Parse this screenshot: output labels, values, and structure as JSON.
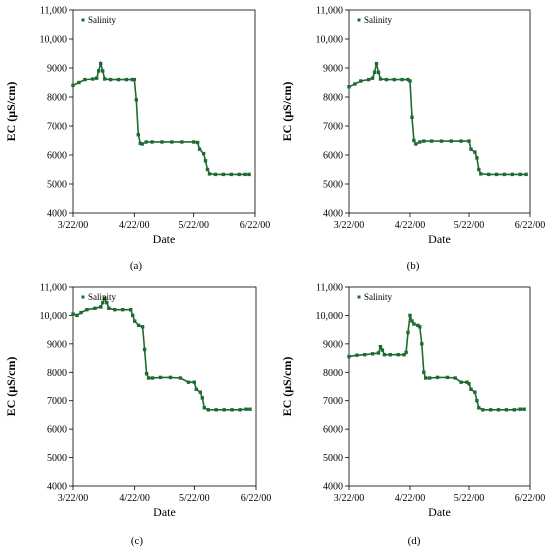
{
  "chart_data": [
    {
      "id": "a",
      "type": "line",
      "caption": "(a)",
      "xlabel": "Date",
      "ylabel": "EC (μS/cm)",
      "ylim": [
        4000,
        11000
      ],
      "yticks": [
        4000,
        5000,
        6000,
        7000,
        8000,
        9000,
        10000,
        11000
      ],
      "ytick_labels": [
        "4000",
        "5000",
        "6000",
        "7000",
        "8000",
        "9000",
        "10,000",
        "11,000"
      ],
      "xlim": [
        "2000-03-22",
        "2000-06-22"
      ],
      "xticks": [
        "2000-03-22",
        "2000-04-22",
        "2000-05-22",
        "2000-06-22"
      ],
      "xtick_labels": [
        "3/22/00",
        "4/22/00",
        "5/22/00",
        "6/22/00"
      ],
      "legend": {
        "position": "top-left",
        "entries": [
          "Salinity"
        ]
      },
      "series": [
        {
          "name": "Salinity",
          "color": "#1e6b32",
          "points": [
            [
              "2000-03-22",
              8400
            ],
            [
              "2000-03-25",
              8500
            ],
            [
              "2000-03-28",
              8600
            ],
            [
              "2000-04-01",
              8620
            ],
            [
              "2000-04-03",
              8650
            ],
            [
              "2000-04-04",
              8900
            ],
            [
              "2000-04-05",
              9150
            ],
            [
              "2000-04-06",
              8900
            ],
            [
              "2000-04-07",
              8620
            ],
            [
              "2000-04-10",
              8600
            ],
            [
              "2000-04-14",
              8600
            ],
            [
              "2000-04-18",
              8600
            ],
            [
              "2000-04-21",
              8600
            ],
            [
              "2000-04-22",
              8600
            ],
            [
              "2000-04-23",
              7900
            ],
            [
              "2000-04-24",
              6700
            ],
            [
              "2000-04-25",
              6400
            ],
            [
              "2000-04-26",
              6380
            ],
            [
              "2000-04-28",
              6450
            ],
            [
              "2000-05-01",
              6450
            ],
            [
              "2000-05-06",
              6450
            ],
            [
              "2000-05-11",
              6450
            ],
            [
              "2000-05-16",
              6450
            ],
            [
              "2000-05-22",
              6450
            ],
            [
              "2000-05-24",
              6430
            ],
            [
              "2000-05-25",
              6200
            ],
            [
              "2000-05-27",
              6050
            ],
            [
              "2000-05-28",
              5800
            ],
            [
              "2000-05-29",
              5500
            ],
            [
              "2000-05-30",
              5350
            ],
            [
              "2000-06-02",
              5330
            ],
            [
              "2000-06-06",
              5330
            ],
            [
              "2000-06-10",
              5330
            ],
            [
              "2000-06-14",
              5330
            ],
            [
              "2000-06-17",
              5330
            ],
            [
              "2000-06-19",
              5330
            ]
          ]
        }
      ]
    },
    {
      "id": "b",
      "type": "line",
      "caption": "(b)",
      "xlabel": "Date",
      "ylabel": "EC (μS/cm)",
      "ylim": [
        4000,
        11000
      ],
      "yticks": [
        4000,
        5000,
        6000,
        7000,
        8000,
        9000,
        10000,
        11000
      ],
      "ytick_labels": [
        "4000",
        "5000",
        "6000",
        "7000",
        "8000",
        "9000",
        "10,000",
        "11,000"
      ],
      "xlim": [
        "2000-03-22",
        "2000-06-22"
      ],
      "xticks": [
        "2000-03-22",
        "2000-04-22",
        "2000-05-22",
        "2000-06-22"
      ],
      "xtick_labels": [
        "3/22/00",
        "4/22/00",
        "5/22/00",
        "6/22/00"
      ],
      "legend": {
        "position": "top-left",
        "entries": [
          "Salinity"
        ]
      },
      "series": [
        {
          "name": "Salinity",
          "color": "#1e6b32",
          "points": [
            [
              "2000-03-22",
              8350
            ],
            [
              "2000-03-25",
              8450
            ],
            [
              "2000-03-28",
              8550
            ],
            [
              "2000-04-01",
              8600
            ],
            [
              "2000-04-03",
              8650
            ],
            [
              "2000-04-04",
              8850
            ],
            [
              "2000-04-05",
              9150
            ],
            [
              "2000-04-06",
              8850
            ],
            [
              "2000-04-07",
              8620
            ],
            [
              "2000-04-10",
              8600
            ],
            [
              "2000-04-14",
              8600
            ],
            [
              "2000-04-18",
              8600
            ],
            [
              "2000-04-21",
              8600
            ],
            [
              "2000-04-22",
              8550
            ],
            [
              "2000-04-23",
              7300
            ],
            [
              "2000-04-24",
              6500
            ],
            [
              "2000-04-25",
              6380
            ],
            [
              "2000-04-27",
              6450
            ],
            [
              "2000-04-29",
              6480
            ],
            [
              "2000-05-03",
              6480
            ],
            [
              "2000-05-08",
              6480
            ],
            [
              "2000-05-13",
              6480
            ],
            [
              "2000-05-18",
              6480
            ],
            [
              "2000-05-22",
              6480
            ],
            [
              "2000-05-23",
              6200
            ],
            [
              "2000-05-25",
              6100
            ],
            [
              "2000-05-26",
              5900
            ],
            [
              "2000-05-27",
              5500
            ],
            [
              "2000-05-28",
              5350
            ],
            [
              "2000-06-01",
              5330
            ],
            [
              "2000-06-05",
              5330
            ],
            [
              "2000-06-09",
              5330
            ],
            [
              "2000-06-13",
              5330
            ],
            [
              "2000-06-17",
              5330
            ],
            [
              "2000-06-20",
              5330
            ]
          ]
        }
      ]
    },
    {
      "id": "c",
      "type": "line",
      "caption": "(c)",
      "xlabel": "Date",
      "ylabel": "EC (μS/cm)",
      "ylim": [
        4000,
        11000
      ],
      "yticks": [
        4000,
        5000,
        6000,
        7000,
        8000,
        9000,
        10000,
        11000
      ],
      "ytick_labels": [
        "4000",
        "5000",
        "6000",
        "7000",
        "8000",
        "9000",
        "10,000",
        "11,000"
      ],
      "xlim": [
        "2000-03-22",
        "2000-06-22"
      ],
      "xticks": [
        "2000-03-22",
        "2000-04-22",
        "2000-05-22",
        "2000-06-22"
      ],
      "xtick_labels": [
        "3/22/00",
        "4/22/00",
        "5/22/00",
        "6/22/00"
      ],
      "legend": {
        "position": "top-left",
        "entries": [
          "Salinity"
        ]
      },
      "series": [
        {
          "name": "Salinity",
          "color": "#1e6b32",
          "points": [
            [
              "2000-03-22",
              10050
            ],
            [
              "2000-03-24",
              10000
            ],
            [
              "2000-03-26",
              10100
            ],
            [
              "2000-03-29",
              10200
            ],
            [
              "2000-04-02",
              10250
            ],
            [
              "2000-04-05",
              10300
            ],
            [
              "2000-04-06",
              10450
            ],
            [
              "2000-04-07",
              10600
            ],
            [
              "2000-04-08",
              10450
            ],
            [
              "2000-04-09",
              10250
            ],
            [
              "2000-04-12",
              10200
            ],
            [
              "2000-04-16",
              10200
            ],
            [
              "2000-04-20",
              10200
            ],
            [
              "2000-04-21",
              10000
            ],
            [
              "2000-04-22",
              9800
            ],
            [
              "2000-04-24",
              9650
            ],
            [
              "2000-04-26",
              9600
            ],
            [
              "2000-04-27",
              8800
            ],
            [
              "2000-04-28",
              7950
            ],
            [
              "2000-04-29",
              7800
            ],
            [
              "2000-05-01",
              7800
            ],
            [
              "2000-05-05",
              7820
            ],
            [
              "2000-05-10",
              7820
            ],
            [
              "2000-05-15",
              7800
            ],
            [
              "2000-05-19",
              7650
            ],
            [
              "2000-05-22",
              7650
            ],
            [
              "2000-05-23",
              7400
            ],
            [
              "2000-05-25",
              7300
            ],
            [
              "2000-05-26",
              7100
            ],
            [
              "2000-05-27",
              6750
            ],
            [
              "2000-05-29",
              6680
            ],
            [
              "2000-06-02",
              6680
            ],
            [
              "2000-06-06",
              6680
            ],
            [
              "2000-06-10",
              6680
            ],
            [
              "2000-06-14",
              6680
            ],
            [
              "2000-06-17",
              6700
            ],
            [
              "2000-06-19",
              6700
            ]
          ]
        }
      ]
    },
    {
      "id": "d",
      "type": "line",
      "caption": "(d)",
      "xlabel": "Date",
      "ylabel": "EC (μS/cm)",
      "ylim": [
        4000,
        11000
      ],
      "yticks": [
        4000,
        5000,
        6000,
        7000,
        8000,
        9000,
        10000,
        11000
      ],
      "ytick_labels": [
        "4000",
        "5000",
        "6000",
        "7000",
        "8000",
        "9000",
        "10,000",
        "11,000"
      ],
      "xlim": [
        "2000-03-22",
        "2000-06-22"
      ],
      "xticks": [
        "2000-03-22",
        "2000-04-22",
        "2000-05-22",
        "2000-06-22"
      ],
      "xtick_labels": [
        "3/22/00",
        "4/22/00",
        "5/22/00",
        "6/22/00"
      ],
      "legend": {
        "position": "top-left",
        "entries": [
          "Salinity"
        ]
      },
      "series": [
        {
          "name": "Salinity",
          "color": "#1e6b32",
          "points": [
            [
              "2000-03-22",
              8550
            ],
            [
              "2000-03-26",
              8600
            ],
            [
              "2000-03-30",
              8620
            ],
            [
              "2000-04-03",
              8650
            ],
            [
              "2000-04-06",
              8680
            ],
            [
              "2000-04-07",
              8900
            ],
            [
              "2000-04-08",
              8780
            ],
            [
              "2000-04-09",
              8620
            ],
            [
              "2000-04-12",
              8620
            ],
            [
              "2000-04-16",
              8620
            ],
            [
              "2000-04-19",
              8620
            ],
            [
              "2000-04-20",
              8700
            ],
            [
              "2000-04-21",
              9400
            ],
            [
              "2000-04-22",
              10000
            ],
            [
              "2000-04-23",
              9800
            ],
            [
              "2000-04-24",
              9700
            ],
            [
              "2000-04-26",
              9650
            ],
            [
              "2000-04-27",
              9600
            ],
            [
              "2000-04-28",
              9000
            ],
            [
              "2000-04-29",
              8000
            ],
            [
              "2000-04-30",
              7800
            ],
            [
              "2000-05-02",
              7800
            ],
            [
              "2000-05-06",
              7820
            ],
            [
              "2000-05-11",
              7820
            ],
            [
              "2000-05-15",
              7800
            ],
            [
              "2000-05-18",
              7650
            ],
            [
              "2000-05-21",
              7650
            ],
            [
              "2000-05-22",
              7600
            ],
            [
              "2000-05-23",
              7400
            ],
            [
              "2000-05-25",
              7300
            ],
            [
              "2000-05-26",
              7000
            ],
            [
              "2000-05-27",
              6750
            ],
            [
              "2000-05-29",
              6680
            ],
            [
              "2000-06-02",
              6680
            ],
            [
              "2000-06-06",
              6680
            ],
            [
              "2000-06-10",
              6680
            ],
            [
              "2000-06-14",
              6680
            ],
            [
              "2000-06-17",
              6700
            ],
            [
              "2000-06-19",
              6700
            ]
          ]
        }
      ]
    }
  ]
}
